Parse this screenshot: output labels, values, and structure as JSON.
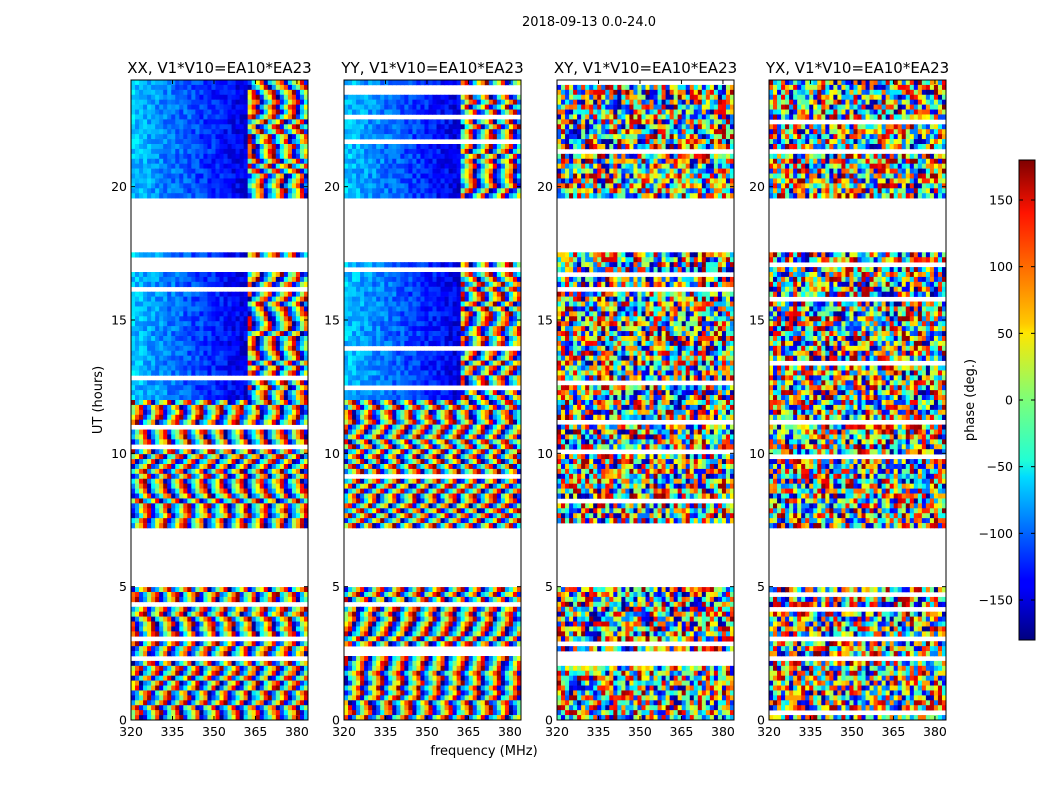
{
  "chart_data": {
    "type": "heatmap",
    "suptitle": "2018-09-13 0.0-24.0",
    "xlabel": "frequency (MHz)",
    "ylabel": "UT (hours)",
    "xlim": [
      320,
      384
    ],
    "ylim": [
      0,
      24
    ],
    "xticks": [
      "320",
      "335",
      "350",
      "365",
      "380"
    ],
    "yticks": [
      "0",
      "5",
      "10",
      "15",
      "20"
    ],
    "colormap": "jet",
    "colorbar": {
      "label": "phase (deg.)",
      "range": [
        -180,
        180
      ],
      "ticks": [
        "−150",
        "−100",
        "−50",
        "0",
        "50",
        "100",
        "150"
      ]
    },
    "data_gaps_hours": [
      [
        5.0,
        7.2
      ],
      [
        17.5,
        19.5
      ]
    ],
    "panels": [
      {
        "title": "XX, V1*V10=EA10*EA23",
        "style": "smooth"
      },
      {
        "title": "YY, V1*V10=EA10*EA23",
        "style": "smooth"
      },
      {
        "title": "XY, V1*V10=EA10*EA23",
        "style": "noisy"
      },
      {
        "title": "YX, V1*V10=EA10*EA23",
        "style": "noisy"
      }
    ]
  }
}
